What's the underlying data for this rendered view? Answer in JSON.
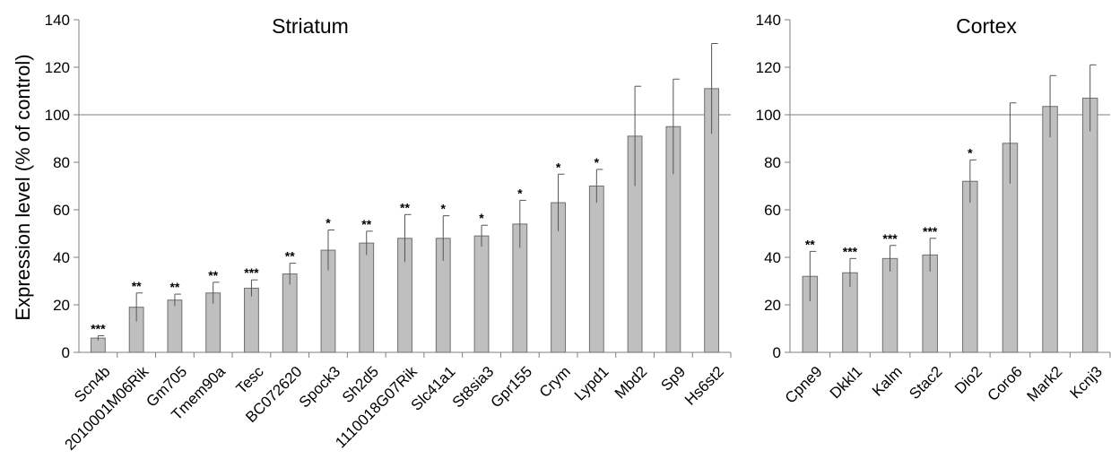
{
  "y_axis_title": "Expression level (% of control)",
  "colors": {
    "bar_fill": "#bfbfbf",
    "bar_stroke": "#6f6f6f",
    "axis": "#7f7f7f",
    "reference_line": "#7f7f7f"
  },
  "chart_data": [
    {
      "type": "bar",
      "title": "Striatum",
      "ylabel": "Expression level (% of control)",
      "ylim": [
        0,
        140
      ],
      "yticks": [
        0,
        20,
        40,
        60,
        80,
        100,
        120,
        140
      ],
      "reference_line": 100,
      "grid": false,
      "categories": [
        "Scn4b",
        "2010001M06Rik",
        "Gm705",
        "Tmem90a",
        "Tesc",
        "BC072620",
        "Spock3",
        "Sh2d5",
        "1110018G07Rik",
        "Slc41a1",
        "St8sia3",
        "Gpr155",
        "Crym",
        "Lypd1",
        "Mbd2",
        "Sp9",
        "Hs6st2"
      ],
      "values": [
        6,
        19,
        22,
        25,
        27,
        33,
        43,
        46,
        48,
        48,
        49,
        54,
        63,
        70,
        91,
        95,
        111
      ],
      "errors": [
        1,
        6,
        2.5,
        4.5,
        3.5,
        4.5,
        8.5,
        5,
        10,
        9.5,
        4.5,
        10,
        12,
        7,
        21,
        20,
        19
      ],
      "significance": [
        "***",
        "**",
        "**",
        "**",
        "***",
        "**",
        "*",
        "**",
        "**",
        "*",
        "*",
        "*",
        "*",
        "*",
        "",
        "",
        ""
      ]
    },
    {
      "type": "bar",
      "title": "Cortex",
      "ylabel": "",
      "ylim": [
        0,
        140
      ],
      "yticks": [
        0,
        20,
        40,
        60,
        80,
        100,
        120,
        140
      ],
      "reference_line": 100,
      "grid": false,
      "categories": [
        "Cpne9",
        "Dkkl1",
        "Kalm",
        "Stac2",
        "Dio2",
        "Coro6",
        "Mark2",
        "Kcnj3"
      ],
      "values": [
        32,
        33.5,
        39.5,
        41,
        72,
        88,
        103.5,
        107
      ],
      "errors": [
        10.5,
        6,
        5.5,
        7,
        9,
        17,
        13,
        14
      ],
      "significance": [
        "**",
        "***",
        "***",
        "***",
        "*",
        "",
        "",
        ""
      ]
    }
  ]
}
